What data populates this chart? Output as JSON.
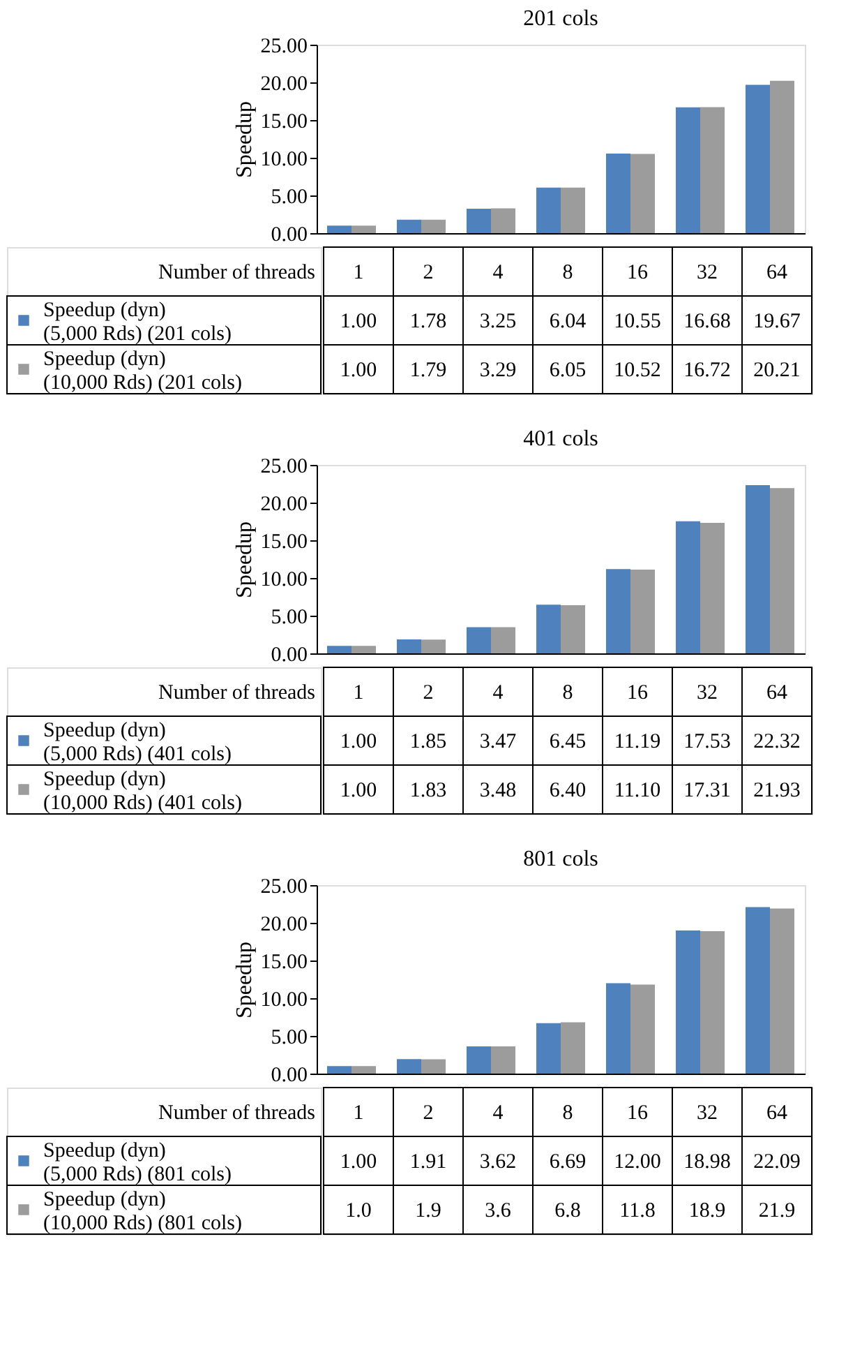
{
  "chart_data": [
    {
      "type": "bar",
      "title": "201 cols",
      "ylabel": "Speedup",
      "xlabel": "Number of threads",
      "categories": [
        "1",
        "2",
        "4",
        "8",
        "16",
        "32",
        "64"
      ],
      "ylim": [
        0,
        25
      ],
      "yticks": [
        {
          "value": 0,
          "label": "0.00"
        },
        {
          "value": 5,
          "label": "5.00"
        },
        {
          "value": 10,
          "label": "10.00"
        },
        {
          "value": 15,
          "label": "15.00"
        },
        {
          "value": 20,
          "label": "20.00"
        },
        {
          "value": 25,
          "label": "25.00"
        }
      ],
      "grid": false,
      "legend": "bottom",
      "series": [
        {
          "name": "Speedup (dyn) (5,000 Rds) (201 cols)",
          "color": "#4f81bd",
          "values": [
            1.0,
            1.78,
            3.25,
            6.04,
            10.55,
            16.68,
            19.67
          ],
          "value_labels": [
            "1.00",
            "1.78",
            "3.25",
            "6.04",
            "10.55",
            "16.68",
            "19.67"
          ]
        },
        {
          "name": "Speedup (dyn) (10,000 Rds) (201 cols)",
          "color": "#9c9c9c",
          "values": [
            1.0,
            1.79,
            3.29,
            6.05,
            10.52,
            16.72,
            20.21
          ],
          "value_labels": [
            "1.00",
            "1.79",
            "3.29",
            "6.05",
            "10.52",
            "16.72",
            "20.21"
          ]
        }
      ]
    },
    {
      "type": "bar",
      "title": "401 cols",
      "ylabel": "Speedup",
      "xlabel": "Number of threads",
      "categories": [
        "1",
        "2",
        "4",
        "8",
        "16",
        "32",
        "64"
      ],
      "ylim": [
        0,
        25
      ],
      "yticks": [
        {
          "value": 0,
          "label": "0.00"
        },
        {
          "value": 5,
          "label": "5.00"
        },
        {
          "value": 10,
          "label": "10.00"
        },
        {
          "value": 15,
          "label": "15.00"
        },
        {
          "value": 20,
          "label": "20.00"
        },
        {
          "value": 25,
          "label": "25.00"
        }
      ],
      "grid": false,
      "legend": "bottom",
      "series": [
        {
          "name": "Speedup (dyn) (5,000 Rds) (401 cols)",
          "color": "#4f81bd",
          "values": [
            1.0,
            1.85,
            3.47,
            6.45,
            11.19,
            17.53,
            22.32
          ],
          "value_labels": [
            "1.00",
            "1.85",
            "3.47",
            "6.45",
            "11.19",
            "17.53",
            "22.32"
          ]
        },
        {
          "name": "Speedup (dyn) (10,000 Rds) (401 cols)",
          "color": "#9c9c9c",
          "values": [
            1.0,
            1.83,
            3.48,
            6.4,
            11.1,
            17.31,
            21.93
          ],
          "value_labels": [
            "1.00",
            "1.83",
            "3.48",
            "6.40",
            "11.10",
            "17.31",
            "21.93"
          ]
        }
      ]
    },
    {
      "type": "bar",
      "title": "801 cols",
      "ylabel": "Speedup",
      "xlabel": "Number of threads",
      "categories": [
        "1",
        "2",
        "4",
        "8",
        "16",
        "32",
        "64"
      ],
      "ylim": [
        0,
        25
      ],
      "yticks": [
        {
          "value": 0,
          "label": "0.00"
        },
        {
          "value": 5,
          "label": "5.00"
        },
        {
          "value": 10,
          "label": "10.00"
        },
        {
          "value": 15,
          "label": "15.00"
        },
        {
          "value": 20,
          "label": "20.00"
        },
        {
          "value": 25,
          "label": "25.00"
        }
      ],
      "grid": false,
      "legend": "bottom",
      "series": [
        {
          "name": "Speedup (dyn) (5,000 Rds) (801 cols)",
          "color": "#4f81bd",
          "values": [
            1.0,
            1.91,
            3.62,
            6.69,
            12.0,
            18.98,
            22.09
          ],
          "value_labels": [
            "1.00",
            "1.91",
            "3.62",
            "6.69",
            "12.00",
            "18.98",
            "22.09"
          ]
        },
        {
          "name": "Speedup (dyn) (10,000 Rds) (801 cols)",
          "color": "#9c9c9c",
          "values": [
            1.0,
            1.9,
            3.6,
            6.8,
            11.8,
            18.9,
            21.9
          ],
          "value_labels": [
            "1.0",
            "1.9",
            "3.6",
            "6.8",
            "11.8",
            "18.9",
            "21.9"
          ]
        }
      ]
    }
  ]
}
